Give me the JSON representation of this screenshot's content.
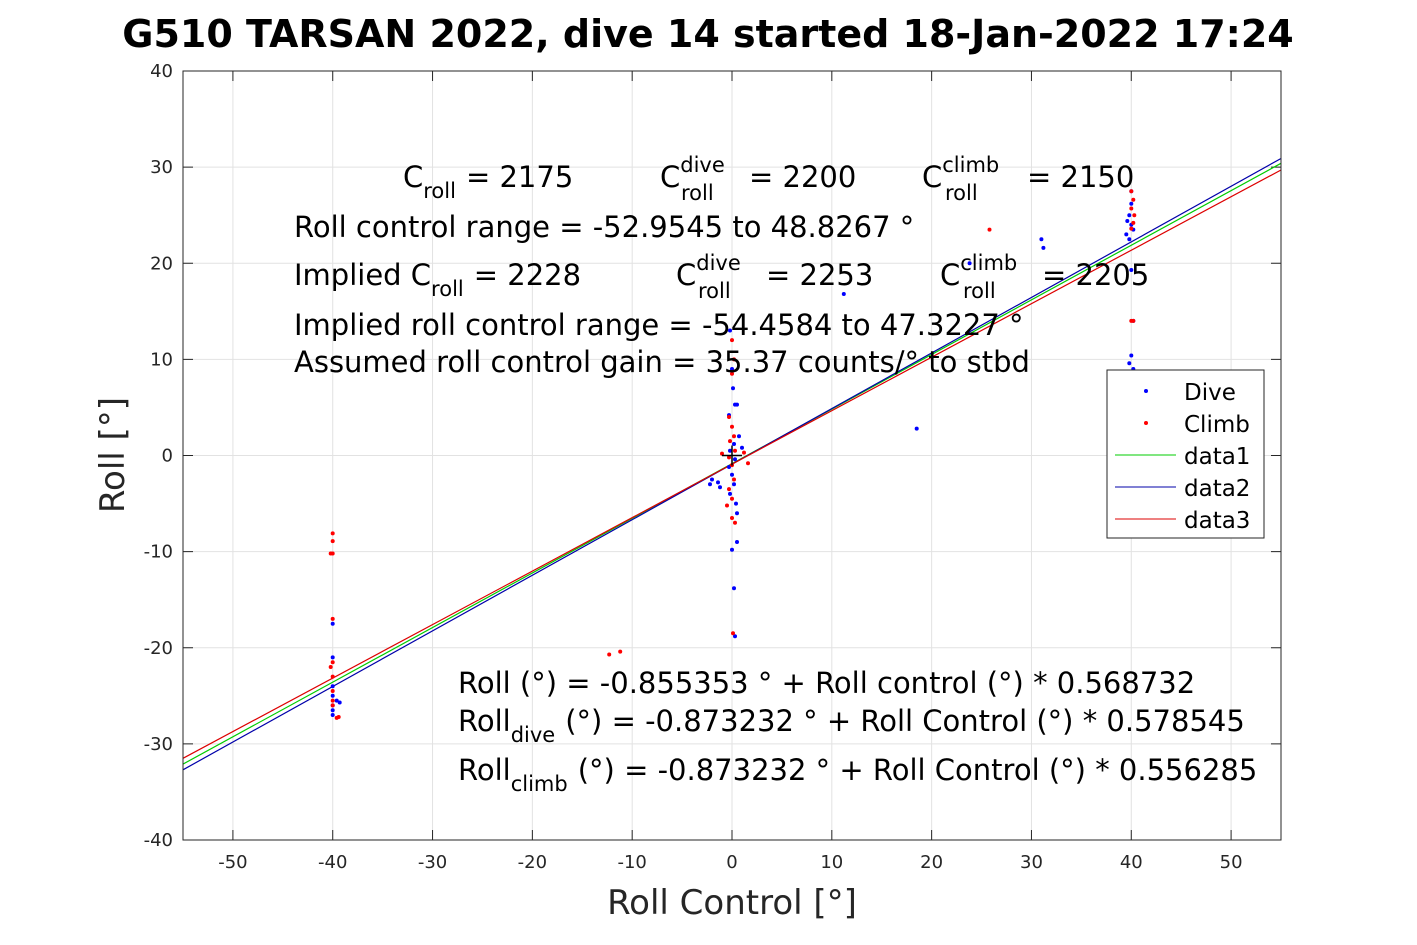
{
  "chart_data": {
    "type": "scatter",
    "title": "G510 TARSAN 2022, dive 14 started 18-Jan-2022 17:24",
    "xlabel": "Roll Control [°]",
    "ylabel": "Roll [°]",
    "xlim": [
      -55,
      55
    ],
    "ylim": [
      -40,
      40
    ],
    "xticks": [
      -50,
      -40,
      -30,
      -20,
      -10,
      0,
      10,
      20,
      30,
      40,
      50
    ],
    "yticks": [
      -40,
      -30,
      -20,
      -10,
      0,
      10,
      20,
      30,
      40
    ],
    "grid": true,
    "legend_position": "right",
    "colors": {
      "dive": "#0000ff",
      "climb": "#ff0000",
      "data1": "#00cc00",
      "data2": "#0000aa",
      "data3": "#dd0000"
    },
    "series": [
      {
        "name": "Dive",
        "style": "points",
        "color": "#0000ff",
        "points": [
          [
            -40,
            -17.5
          ],
          [
            -40,
            -21
          ],
          [
            -40,
            -24
          ],
          [
            -40,
            -25
          ],
          [
            -40,
            -26
          ],
          [
            -40,
            -26.5
          ],
          [
            -40,
            -27
          ],
          [
            -39.6,
            -25.5
          ],
          [
            -39.3,
            -25.7
          ],
          [
            -0.2,
            13
          ],
          [
            0,
            9
          ],
          [
            0.1,
            7
          ],
          [
            0.3,
            5.3
          ],
          [
            0.5,
            5.3
          ],
          [
            -0.3,
            4.2
          ],
          [
            0.7,
            2
          ],
          [
            0.2,
            1.2
          ],
          [
            -0.2,
            0.5
          ],
          [
            0.3,
            -0.4
          ],
          [
            -0.3,
            -1.2
          ],
          [
            0,
            -2
          ],
          [
            0.2,
            -3
          ],
          [
            -0.2,
            -4
          ],
          [
            0.4,
            -5
          ],
          [
            0.5,
            -6
          ],
          [
            0,
            -9.8
          ],
          [
            0.5,
            -9
          ],
          [
            0.2,
            -13.8
          ],
          [
            0.3,
            -18.8
          ],
          [
            -2,
            -2.5
          ],
          [
            -2.2,
            -3
          ],
          [
            -1.4,
            -2.8
          ],
          [
            -1.2,
            -3.3
          ],
          [
            1,
            0.8
          ],
          [
            11.2,
            16.8
          ],
          [
            18.5,
            2.8
          ],
          [
            23.8,
            20
          ],
          [
            31,
            22.5
          ],
          [
            31.2,
            21.6
          ],
          [
            40,
            27.5
          ],
          [
            40,
            26.2
          ],
          [
            39.8,
            25
          ],
          [
            39.6,
            24.4
          ],
          [
            40,
            24
          ],
          [
            40.2,
            23.5
          ],
          [
            39.5,
            23
          ],
          [
            39.8,
            22.5
          ],
          [
            40,
            19.3
          ],
          [
            40.2,
            14
          ],
          [
            40,
            10.4
          ],
          [
            39.8,
            9.6
          ],
          [
            40.2,
            9
          ]
        ]
      },
      {
        "name": "Climb",
        "style": "points",
        "color": "#ff0000",
        "points": [
          [
            -40,
            -8.1
          ],
          [
            -40,
            -8.9
          ],
          [
            -40,
            -10.2
          ],
          [
            -40.2,
            -10.2
          ],
          [
            -40,
            -17
          ],
          [
            -40,
            -21.5
          ],
          [
            -40.2,
            -22
          ],
          [
            -40,
            -23
          ],
          [
            -40,
            -24.5
          ],
          [
            -40,
            -25.5
          ],
          [
            -40,
            -26
          ],
          [
            -39.6,
            -27.3
          ],
          [
            -39.4,
            -27.2
          ],
          [
            -12.3,
            -20.7
          ],
          [
            -11.2,
            -20.4
          ],
          [
            0,
            12
          ],
          [
            0.2,
            10
          ],
          [
            0,
            8.5
          ],
          [
            -0.3,
            4
          ],
          [
            0,
            3
          ],
          [
            0.2,
            2
          ],
          [
            -0.2,
            1.5
          ],
          [
            0.3,
            0.5
          ],
          [
            -0.3,
            -0.2
          ],
          [
            0,
            -1
          ],
          [
            0.2,
            -2.5
          ],
          [
            -0.3,
            -3.5
          ],
          [
            0,
            -4.5
          ],
          [
            -0.5,
            -5.2
          ],
          [
            0,
            -6.5
          ],
          [
            0.3,
            -7
          ],
          [
            0.1,
            -18.5
          ],
          [
            -1,
            0.2
          ],
          [
            1.2,
            0.3
          ],
          [
            1.6,
            -0.8
          ],
          [
            25.8,
            23.5
          ],
          [
            40,
            27.5
          ],
          [
            40.2,
            26.6
          ],
          [
            40,
            25.7
          ],
          [
            40.3,
            25
          ],
          [
            40.2,
            24.2
          ],
          [
            40,
            23.6
          ],
          [
            40,
            14
          ],
          [
            40.2,
            14
          ]
        ]
      },
      {
        "name": "data1",
        "style": "line",
        "color": "#00cc00",
        "x": [
          -55,
          55
        ],
        "y": [
          -32.1,
          30.4
        ]
      },
      {
        "name": "data2",
        "style": "line",
        "color": "#0000aa",
        "x": [
          -55,
          55
        ],
        "y": [
          -32.7,
          30.9
        ]
      },
      {
        "name": "data3",
        "style": "line",
        "color": "#dd0000",
        "x": [
          -55,
          55
        ],
        "y": [
          -31.5,
          29.7
        ]
      }
    ],
    "marker": {
      "type": "+",
      "x": 0,
      "y": 0,
      "color": "#000000"
    },
    "legend": [
      "Dive",
      "Climb",
      "data1",
      "data2",
      "data3"
    ],
    "annotations": {
      "c_roll": {
        "label": "C",
        "sub": "roll",
        "value": "= 2175"
      },
      "c_roll_dive": {
        "label": "C",
        "sup": "dive",
        "sub": "roll",
        "value": "= 2200"
      },
      "c_roll_climb": {
        "label": "C",
        "sup": "climb",
        "sub": "roll",
        "value": "= 2150"
      },
      "roll_control_range": "Roll control range = -52.9545 to 48.8267 °",
      "implied_c_roll": {
        "prefix": "Implied C",
        "sub": "roll",
        "value": "= 2228"
      },
      "implied_c_roll_dive": {
        "label": "C",
        "sup": "dive",
        "sub": "roll",
        "value": "= 2253"
      },
      "implied_c_roll_climb": {
        "label": "C",
        "sup": "climb",
        "sub": "roll",
        "value": "= 2205"
      },
      "implied_range": "Implied roll control range = -54.4584 to 47.3227 °",
      "gain": "Assumed roll control gain = 35.37 counts/° to stbd",
      "fit_all": "Roll (°) = -0.855353 ° + Roll control (°) * 0.568732",
      "fit_dive": {
        "label": "Roll",
        "sub": "dive",
        "rest": "(°) = -0.873232 ° + Roll Control (°) * 0.578545"
      },
      "fit_climb": {
        "label": "Roll",
        "sub": "climb",
        "rest": "(°) = -0.873232 ° + Roll Control (°) * 0.556285"
      }
    }
  }
}
